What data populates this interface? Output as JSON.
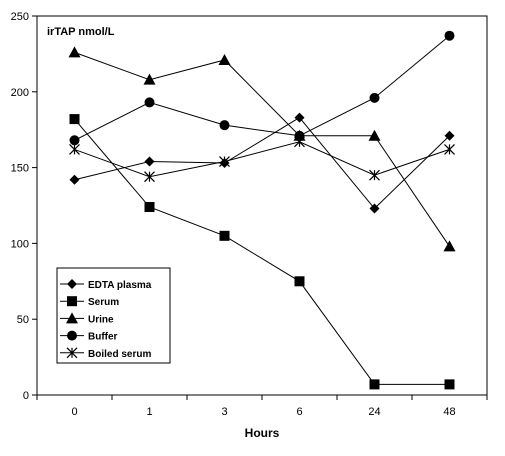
{
  "chart_data": {
    "type": "line",
    "ylabel": "irTAP nmol/L",
    "xlabel": "Hours",
    "categories": [
      "0",
      "1",
      "3",
      "6",
      "24",
      "48"
    ],
    "ylim": [
      0,
      250
    ],
    "yticks": [
      0,
      50,
      100,
      150,
      200,
      250
    ],
    "grid": false,
    "legend_position": "bottom-left",
    "series": [
      {
        "name": "EDTA plasma",
        "marker": "diamond",
        "values": [
          142,
          154,
          153,
          183,
          123,
          171
        ]
      },
      {
        "name": "Serum",
        "marker": "square",
        "values": [
          182,
          124,
          105,
          75,
          7,
          7
        ]
      },
      {
        "name": "Urine",
        "marker": "triangle",
        "values": [
          226,
          208,
          221,
          171,
          171,
          98
        ]
      },
      {
        "name": "Buffer",
        "marker": "circle",
        "values": [
          168,
          193,
          178,
          171,
          196,
          237
        ]
      },
      {
        "name": "Boiled serum",
        "marker": "star",
        "values": [
          162,
          144,
          154,
          167,
          145,
          162
        ]
      }
    ]
  }
}
